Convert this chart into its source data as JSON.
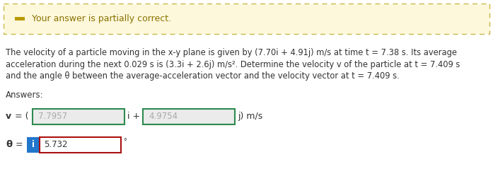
{
  "banner_text": "Your answer is partially correct.",
  "banner_bg": "#fdf8dc",
  "banner_border": "#c8b84a",
  "problem_line1": "The velocity of a particle moving in the x-y plane is given by (7.70i + 4.91j) m/s at time t = 7.38 s. Its average",
  "problem_line2": "acceleration during the next 0.029 s is (3.3i + 2.6j) m/s². Determine the velocity v of the particle at t = 7.409 s",
  "problem_line3": "and the angle θ between the average-acceleration vector and the velocity vector at t = 7.409 s.",
  "answers_label": "Answers:",
  "v_prefix": "v = (",
  "v_val1": "7.7957",
  "v_mid": "i +",
  "v_val2": "4.9754",
  "v_suffix": "j) m/s",
  "theta_label": "θ =",
  "theta_val": "5.732",
  "degree_symbol": "°",
  "box1_border": "#2d8a4e",
  "box2_border": "#2d8a4e",
  "box3_border": "#aa1111",
  "box_bg": "#ebebeb",
  "info_bg": "#2277cc",
  "info_text": "i",
  "fig_bg": "#ffffff",
  "text_color": "#333333",
  "banner_text_color": "#8a7200",
  "icon_color": "#b89a00",
  "v_bold": true,
  "theta_bold": true
}
